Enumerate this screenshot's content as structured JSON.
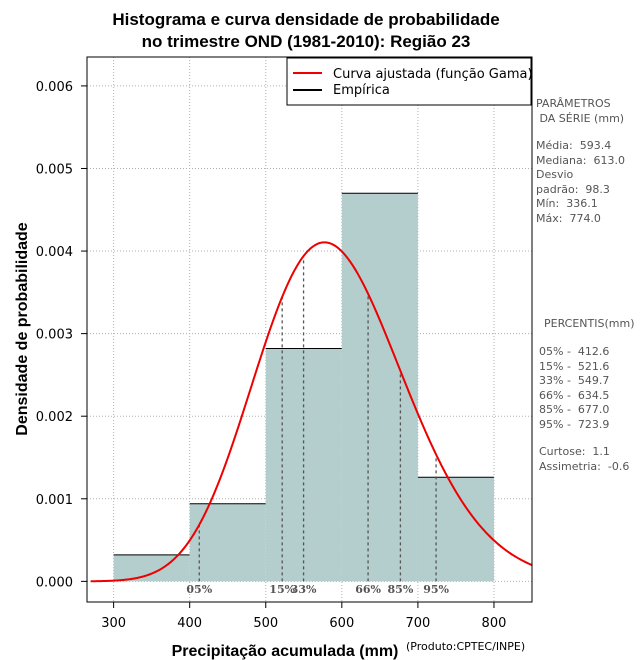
{
  "chart_data": {
    "type": "bar",
    "title_lines": [
      "Histograma e curva densidade de probabilidade",
      "no trimestre OND (1981-2010): Região 23"
    ],
    "xlabel": "Precipitação acumulada (mm)",
    "ylabel": "Densidade de probabilidade",
    "xlim": [
      265,
      850
    ],
    "ylim": [
      -0.00025,
      0.00635
    ],
    "x_ticks": [
      300,
      400,
      500,
      600,
      700,
      800
    ],
    "y_ticks": [
      0.0,
      0.001,
      0.002,
      0.003,
      0.004,
      0.005,
      0.006
    ],
    "y_tick_labels": [
      "0.000",
      "0.001",
      "0.002",
      "0.003",
      "0.004",
      "0.005",
      "0.006"
    ],
    "grid": true,
    "bins": [
      {
        "start": 300,
        "end": 400,
        "density": 0.00032
      },
      {
        "start": 400,
        "end": 500,
        "density": 0.00094
      },
      {
        "start": 500,
        "end": 600,
        "density": 0.00282
      },
      {
        "start": 600,
        "end": 700,
        "density": 0.0047
      },
      {
        "start": 700,
        "end": 800,
        "density": 0.00126
      }
    ],
    "bar_color": "#b4cdcd",
    "curve_color": "#ee0000",
    "gamma_fit": {
      "mean": 593.4,
      "sd": 98.3
    },
    "curve_range": [
      270,
      850
    ],
    "percentiles": [
      {
        "label": "05%",
        "value": 412.6
      },
      {
        "label": "15%",
        "value": 521.6
      },
      {
        "label": "33%",
        "value": 549.7
      },
      {
        "label": "66%",
        "value": 634.5
      },
      {
        "label": "85%",
        "value": 677.0
      },
      {
        "label": "95%",
        "value": 723.9
      }
    ],
    "legend": {
      "position": "top-right",
      "entries": [
        {
          "label": "Curva ajustada (função Gama)",
          "color": "#ee0000"
        },
        {
          "label": "Empírica",
          "color": "#000000"
        }
      ]
    }
  },
  "side_panel": {
    "params_title": "PARÂMETROS\n DA SÉRIE (mm)",
    "params_text": "Média:  593.4\nMediana:  613.0\nDesvio\npadrão:  98.3\nMín:  336.1\nMáx:  774.0",
    "pct_title": "PERCENTIS(mm)",
    "pct_text": "05% -  412.6\n15% -  521.6\n33% -  549.7\n66% -  634.5\n85% -  677.0\n95% -  723.9",
    "stats_text": "Curtose:  1.1\nAssimetria:  -0.6"
  },
  "credit": "(Produto:CPTEC/INPE)"
}
